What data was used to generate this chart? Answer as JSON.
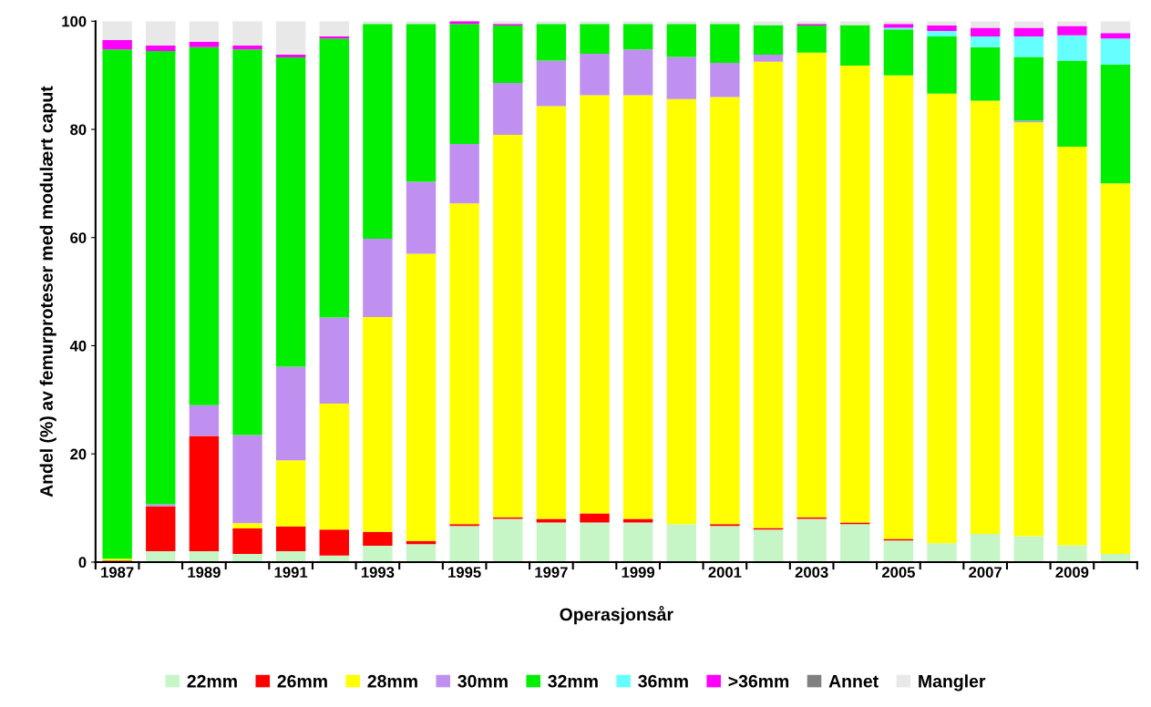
{
  "chart_data": {
    "type": "bar",
    "stacked": true,
    "xlabel": "Operasjonsår",
    "ylabel": "Andel (%) av femurproteser med modulært caput",
    "categories": [
      "1987",
      null,
      "1989",
      null,
      "1991",
      null,
      "1993",
      null,
      "1995",
      null,
      "1997",
      null,
      "1999",
      null,
      "2001",
      null,
      "2003",
      null,
      "2005",
      null,
      "2007",
      null,
      "2009",
      null
    ],
    "ylim": [
      0,
      100
    ],
    "yticks": [
      0,
      20,
      40,
      60,
      80,
      100
    ],
    "grid": false,
    "legend": "bottom",
    "series": [
      {
        "name": "22mm",
        "color": "#c6f5c6",
        "values": [
          0,
          2,
          2,
          1.5,
          2,
          1.2,
          3,
          3.3,
          6.7,
          8,
          7.3,
          7.3,
          7.3,
          7,
          6.7,
          6,
          8,
          7,
          4,
          3.5,
          5.2,
          4.8,
          3.1,
          1.5
        ]
      },
      {
        "name": "26mm",
        "color": "#ff0000",
        "values": [
          0.3,
          8.3,
          21.3,
          4.7,
          4.6,
          4.8,
          2.6,
          0.6,
          0.3,
          0.3,
          0.7,
          1.7,
          0.7,
          0,
          0.3,
          0.3,
          0.3,
          0.3,
          0.3,
          0,
          0,
          0,
          0,
          0
        ]
      },
      {
        "name": "28mm",
        "color": "#ffff00",
        "values": [
          0.3,
          0,
          0,
          1.0,
          12.2,
          23.3,
          39.7,
          53.1,
          59.3,
          70.7,
          76.3,
          77.3,
          78.3,
          78.6,
          79,
          86.2,
          85.9,
          84.5,
          85.7,
          83.1,
          80.1,
          76.5,
          73.7,
          68.5
        ]
      },
      {
        "name": "30mm",
        "color": "#c090f0",
        "values": [
          0,
          0.4,
          5.7,
          16.3,
          17.3,
          15.9,
          14.5,
          13.3,
          11,
          9.6,
          8.4,
          7.7,
          8.5,
          7.8,
          6.3,
          1.3,
          0,
          0,
          0,
          0,
          0,
          0.3,
          0,
          0
        ]
      },
      {
        "name": "32mm",
        "color": "#00ee00",
        "values": [
          94.2,
          83.8,
          66.2,
          71.3,
          57.2,
          51.6,
          39.7,
          29.2,
          22.2,
          10.6,
          6.8,
          5.5,
          4.7,
          6.1,
          7.2,
          5.5,
          5.0,
          7.5,
          8.5,
          10.6,
          9.9,
          11.8,
          15.9,
          22
        ]
      },
      {
        "name": "36mm",
        "color": "#66ffff",
        "values": [
          0,
          0,
          0,
          0,
          0,
          0,
          0,
          0,
          0,
          0,
          0,
          0,
          0,
          0,
          0,
          0,
          0,
          0,
          0.3,
          1.0,
          2.0,
          3.8,
          4.7,
          4.8
        ]
      },
      {
        "name": ">36mm",
        "color": "#ff00ff",
        "values": [
          1.7,
          1.0,
          1.0,
          0.7,
          0.5,
          0.4,
          0,
          0,
          0.5,
          0.3,
          0,
          0,
          0,
          0,
          0,
          0,
          0.3,
          0,
          0.7,
          1.0,
          1.6,
          1.6,
          1.7,
          1.0
        ]
      },
      {
        "name": "Annet",
        "color": "#808080",
        "values": [
          0,
          0,
          0,
          0,
          0,
          0,
          0,
          0,
          0,
          0,
          0,
          0,
          0,
          0,
          0,
          0,
          0,
          0,
          0,
          0,
          0,
          0,
          0,
          0
        ]
      },
      {
        "name": "Mangler",
        "color": "#e8e8e8",
        "values": [
          3.5,
          4.5,
          3.8,
          4.5,
          6.2,
          2.8,
          0.5,
          0.5,
          0,
          0.5,
          0.5,
          0.5,
          0.5,
          0.5,
          0.5,
          0.7,
          0.5,
          0.7,
          0.5,
          0.8,
          1.2,
          1.2,
          0.9,
          2.2
        ]
      }
    ]
  }
}
